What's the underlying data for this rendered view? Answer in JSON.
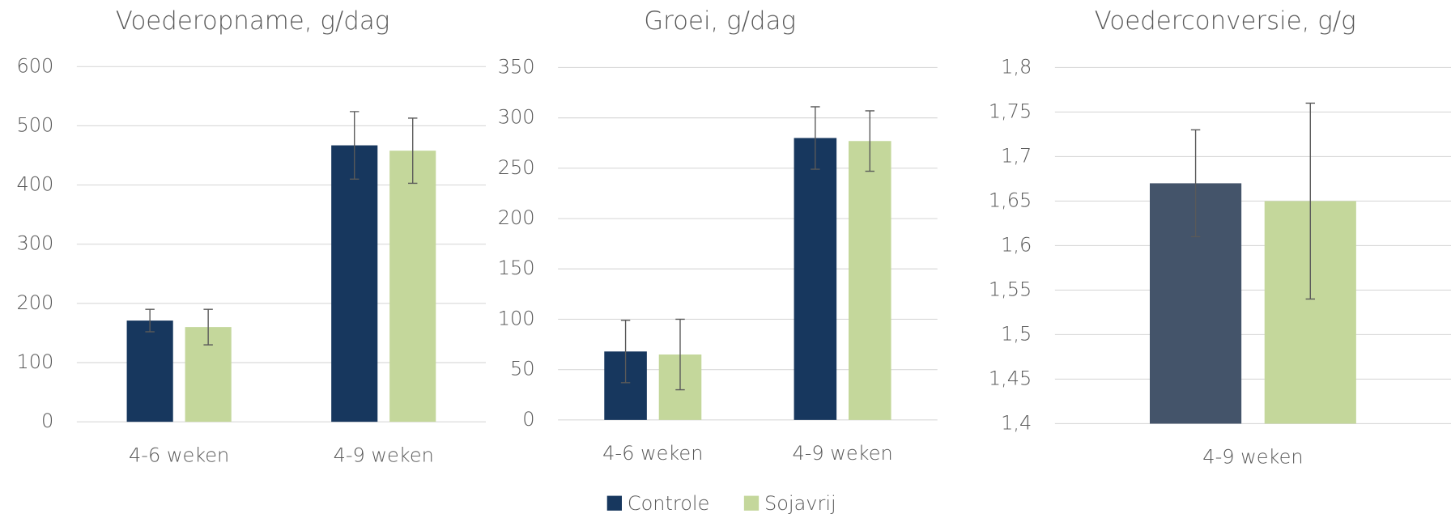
{
  "chart_data": [
    {
      "type": "bar",
      "title": "Voederopname, g/dag",
      "categories": [
        "4-6 weken",
        "4-9 weken"
      ],
      "series": [
        {
          "name": "Controle",
          "color": "#17375e",
          "values": [
            171,
            467
          ],
          "errors": [
            19,
            57
          ]
        },
        {
          "name": "Sojavrij",
          "color": "#c4d79b",
          "values": [
            160,
            458
          ],
          "errors": [
            30,
            55
          ]
        }
      ],
      "ylim": [
        0,
        600
      ],
      "yticks": [
        0,
        100,
        200,
        300,
        400,
        500,
        600
      ],
      "grid": true
    },
    {
      "type": "bar",
      "title": "Groei, g/dag",
      "categories": [
        "4-6 weken",
        "4-9 weken"
      ],
      "series": [
        {
          "name": "Controle",
          "color": "#17375e",
          "values": [
            68,
            280
          ],
          "errors": [
            31,
            31
          ]
        },
        {
          "name": "Sojavrij",
          "color": "#c4d79b",
          "values": [
            65,
            277
          ],
          "errors": [
            35,
            30
          ]
        }
      ],
      "ylim": [
        0,
        350
      ],
      "yticks": [
        0,
        50,
        100,
        150,
        200,
        250,
        300,
        350
      ],
      "grid": true,
      "legend": "bottom"
    },
    {
      "type": "bar",
      "title": "Voederconversie, g/g",
      "categories": [
        "4-9 weken"
      ],
      "series": [
        {
          "name": "Controle",
          "color": "#44546a",
          "values": [
            1.67
          ],
          "errors": [
            0.06
          ]
        },
        {
          "name": "Sojavrij",
          "color": "#c4d79b",
          "values": [
            1.65
          ],
          "errors": [
            0.11
          ]
        }
      ],
      "ylim": [
        1.4,
        1.8
      ],
      "yticks": [
        {
          "value": 1.4,
          "label": "1,4"
        },
        {
          "value": 1.45,
          "label": "1,45"
        },
        {
          "value": 1.5,
          "label": "1,5"
        },
        {
          "value": 1.55,
          "label": "1,55"
        },
        {
          "value": 1.6,
          "label": "1,6"
        },
        {
          "value": 1.65,
          "label": "1,65"
        },
        {
          "value": 1.7,
          "label": "1,7"
        },
        {
          "value": 1.75,
          "label": "1,75"
        },
        {
          "value": 1.8,
          "label": "1,8"
        }
      ],
      "grid": true
    }
  ]
}
